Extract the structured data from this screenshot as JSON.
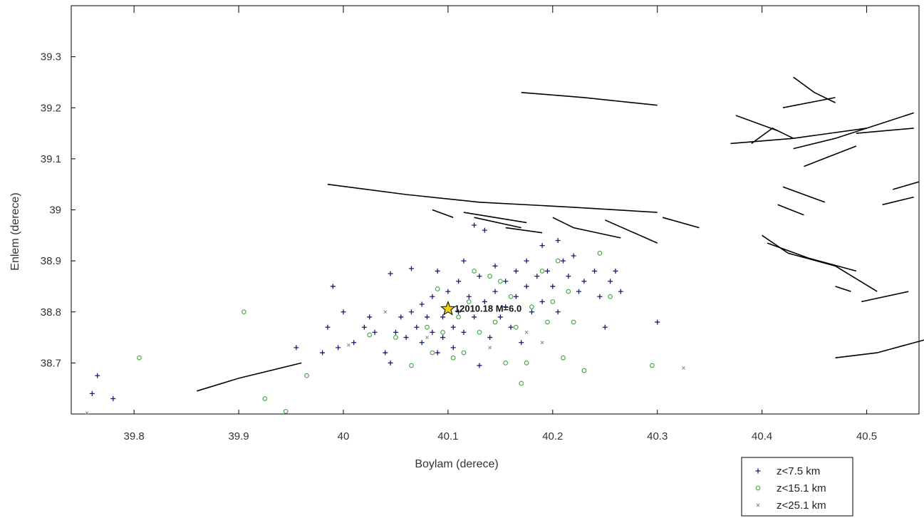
{
  "chart_data": {
    "type": "scatter",
    "xlabel": "Boylam (derece)",
    "ylabel": "Enlem (derece)",
    "xlim": [
      39.74,
      40.55
    ],
    "ylim": [
      38.6,
      39.4
    ],
    "x_ticks": [
      "39.8",
      "39.9",
      "40",
      "40.1",
      "40.2",
      "40.3",
      "40.4",
      "40.5"
    ],
    "y_ticks": [
      "38.7",
      "38.8",
      "38.9",
      "39",
      "39.1",
      "39.2",
      "39.3"
    ],
    "grid": false,
    "legend_position": "bottom-right",
    "colors": {
      "shallow": "#1a1a6e",
      "mid": "#3aa63a",
      "deep": "#888888",
      "star": "#f5d000",
      "fault": "#000000"
    },
    "mainshock": {
      "x": 40.1,
      "y": 38.806,
      "label": "12010.18 M=6.0"
    },
    "series": [
      {
        "name": "z<7.5 km",
        "marker": "plus",
        "points": [
          [
            39.76,
            38.64
          ],
          [
            39.765,
            38.675
          ],
          [
            39.78,
            38.63
          ],
          [
            39.955,
            38.73
          ],
          [
            39.98,
            38.72
          ],
          [
            39.985,
            38.77
          ],
          [
            39.99,
            38.85
          ],
          [
            39.995,
            38.73
          ],
          [
            40.0,
            38.8
          ],
          [
            40.01,
            38.74
          ],
          [
            40.02,
            38.77
          ],
          [
            40.025,
            38.79
          ],
          [
            40.03,
            38.76
          ],
          [
            40.04,
            38.72
          ],
          [
            40.045,
            38.7
          ],
          [
            40.045,
            38.875
          ],
          [
            40.05,
            38.76
          ],
          [
            40.055,
            38.79
          ],
          [
            40.06,
            38.75
          ],
          [
            40.065,
            38.8
          ],
          [
            40.065,
            38.885
          ],
          [
            40.07,
            38.77
          ],
          [
            40.075,
            38.74
          ],
          [
            40.075,
            38.815
          ],
          [
            40.08,
            38.79
          ],
          [
            40.085,
            38.76
          ],
          [
            40.085,
            38.83
          ],
          [
            40.09,
            38.88
          ],
          [
            40.09,
            38.72
          ],
          [
            40.095,
            38.79
          ],
          [
            40.095,
            38.75
          ],
          [
            40.1,
            38.84
          ],
          [
            40.105,
            38.77
          ],
          [
            40.105,
            38.73
          ],
          [
            40.11,
            38.86
          ],
          [
            40.11,
            38.8
          ],
          [
            40.115,
            38.9
          ],
          [
            40.115,
            38.76
          ],
          [
            40.12,
            38.83
          ],
          [
            40.125,
            38.97
          ],
          [
            40.125,
            38.79
          ],
          [
            40.13,
            38.87
          ],
          [
            40.13,
            38.695
          ],
          [
            40.135,
            38.96
          ],
          [
            40.135,
            38.82
          ],
          [
            40.14,
            38.75
          ],
          [
            40.145,
            38.84
          ],
          [
            40.145,
            38.89
          ],
          [
            40.15,
            38.79
          ],
          [
            40.155,
            38.86
          ],
          [
            40.155,
            38.81
          ],
          [
            40.16,
            38.77
          ],
          [
            40.165,
            38.88
          ],
          [
            40.165,
            38.83
          ],
          [
            40.17,
            38.74
          ],
          [
            40.175,
            38.9
          ],
          [
            40.175,
            38.85
          ],
          [
            40.18,
            38.8
          ],
          [
            40.185,
            38.87
          ],
          [
            40.19,
            38.93
          ],
          [
            40.19,
            38.82
          ],
          [
            40.195,
            38.88
          ],
          [
            40.2,
            38.85
          ],
          [
            40.205,
            38.94
          ],
          [
            40.205,
            38.8
          ],
          [
            40.21,
            38.9
          ],
          [
            40.215,
            38.87
          ],
          [
            40.22,
            38.91
          ],
          [
            40.225,
            38.84
          ],
          [
            40.23,
            38.86
          ],
          [
            40.24,
            38.88
          ],
          [
            40.245,
            38.83
          ],
          [
            40.25,
            38.77
          ],
          [
            40.255,
            38.86
          ],
          [
            40.26,
            38.88
          ],
          [
            40.265,
            38.84
          ],
          [
            40.3,
            38.78
          ]
        ]
      },
      {
        "name": "z<15.1 km",
        "marker": "circle",
        "points": [
          [
            39.805,
            38.71
          ],
          [
            39.905,
            38.8
          ],
          [
            39.925,
            38.63
          ],
          [
            39.945,
            38.605
          ],
          [
            39.965,
            38.675
          ],
          [
            40.025,
            38.755
          ],
          [
            40.05,
            38.75
          ],
          [
            40.065,
            38.695
          ],
          [
            40.08,
            38.77
          ],
          [
            40.085,
            38.72
          ],
          [
            40.09,
            38.845
          ],
          [
            40.095,
            38.76
          ],
          [
            40.105,
            38.71
          ],
          [
            40.11,
            38.79
          ],
          [
            40.115,
            38.72
          ],
          [
            40.12,
            38.82
          ],
          [
            40.125,
            38.88
          ],
          [
            40.13,
            38.76
          ],
          [
            40.14,
            38.87
          ],
          [
            40.145,
            38.78
          ],
          [
            40.15,
            38.86
          ],
          [
            40.155,
            38.7
          ],
          [
            40.16,
            38.83
          ],
          [
            40.165,
            38.77
          ],
          [
            40.17,
            38.66
          ],
          [
            40.175,
            38.7
          ],
          [
            40.18,
            38.81
          ],
          [
            40.19,
            38.88
          ],
          [
            40.195,
            38.78
          ],
          [
            40.2,
            38.82
          ],
          [
            40.205,
            38.9
          ],
          [
            40.21,
            38.71
          ],
          [
            40.215,
            38.84
          ],
          [
            40.22,
            38.78
          ],
          [
            40.23,
            38.685
          ],
          [
            40.245,
            38.915
          ],
          [
            40.255,
            38.83
          ],
          [
            40.295,
            38.695
          ]
        ]
      },
      {
        "name": "z<25.1 km",
        "marker": "x",
        "points": [
          [
            39.755,
            38.602
          ],
          [
            40.005,
            38.735
          ],
          [
            40.04,
            38.8
          ],
          [
            40.08,
            38.75
          ],
          [
            40.14,
            38.73
          ],
          [
            40.175,
            38.76
          ],
          [
            40.19,
            38.74
          ],
          [
            40.325,
            38.69
          ]
        ]
      }
    ],
    "faults": [
      [
        [
          39.86,
          38.645
        ],
        [
          39.9,
          38.67
        ],
        [
          39.96,
          38.7
        ]
      ],
      [
        [
          39.985,
          39.05
        ],
        [
          40.06,
          39.03
        ],
        [
          40.13,
          39.015
        ],
        [
          40.22,
          39.005
        ],
        [
          40.3,
          38.995
        ]
      ],
      [
        [
          40.085,
          39.0
        ],
        [
          40.105,
          38.985
        ]
      ],
      [
        [
          40.115,
          38.995
        ],
        [
          40.175,
          38.975
        ]
      ],
      [
        [
          40.125,
          38.985
        ],
        [
          40.17,
          38.965
        ]
      ],
      [
        [
          40.155,
          38.965
        ],
        [
          40.19,
          38.955
        ]
      ],
      [
        [
          40.2,
          38.985
        ],
        [
          40.22,
          38.965
        ],
        [
          40.265,
          38.945
        ]
      ],
      [
        [
          40.25,
          38.98
        ],
        [
          40.3,
          38.935
        ]
      ],
      [
        [
          40.305,
          38.985
        ],
        [
          40.34,
          38.965
        ]
      ],
      [
        [
          40.17,
          39.23
        ],
        [
          40.23,
          39.22
        ],
        [
          40.3,
          39.205
        ]
      ],
      [
        [
          40.37,
          39.13
        ],
        [
          40.43,
          39.14
        ],
        [
          40.5,
          39.16
        ]
      ],
      [
        [
          40.39,
          39.13
        ],
        [
          40.41,
          39.16
        ],
        [
          40.43,
          39.14
        ]
      ],
      [
        [
          40.375,
          39.185
        ],
        [
          40.415,
          39.155
        ]
      ],
      [
        [
          40.42,
          39.2
        ],
        [
          40.47,
          39.22
        ]
      ],
      [
        [
          40.43,
          39.26
        ],
        [
          40.45,
          39.23
        ],
        [
          40.47,
          39.21
        ]
      ],
      [
        [
          40.43,
          39.12
        ],
        [
          40.47,
          39.14
        ],
        [
          40.545,
          39.19
        ]
      ],
      [
        [
          40.49,
          39.15
        ],
        [
          40.545,
          39.16
        ]
      ],
      [
        [
          40.44,
          39.085
        ],
        [
          40.49,
          39.125
        ]
      ],
      [
        [
          40.42,
          39.045
        ],
        [
          40.46,
          39.015
        ]
      ],
      [
        [
          40.415,
          39.01
        ],
        [
          40.44,
          38.99
        ]
      ],
      [
        [
          40.4,
          38.95
        ],
        [
          40.425,
          38.915
        ],
        [
          40.47,
          38.89
        ],
        [
          40.51,
          38.84
        ]
      ],
      [
        [
          40.405,
          38.935
        ],
        [
          40.445,
          38.905
        ],
        [
          40.49,
          38.88
        ]
      ],
      [
        [
          40.495,
          38.82
        ],
        [
          40.54,
          38.84
        ]
      ],
      [
        [
          40.47,
          38.85
        ],
        [
          40.485,
          38.84
        ]
      ],
      [
        [
          40.515,
          39.01
        ],
        [
          40.545,
          39.025
        ]
      ],
      [
        [
          40.525,
          39.04
        ],
        [
          40.55,
          39.055
        ]
      ],
      [
        [
          40.47,
          38.71
        ],
        [
          40.51,
          38.72
        ],
        [
          40.555,
          38.745
        ]
      ]
    ]
  }
}
